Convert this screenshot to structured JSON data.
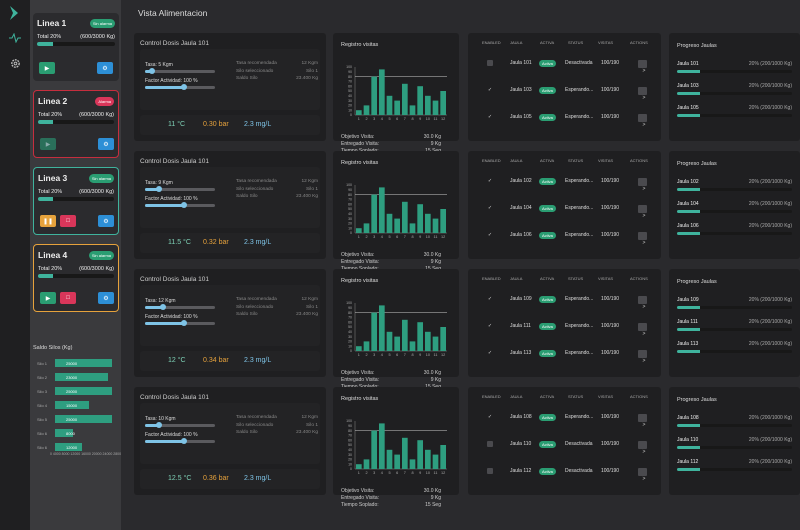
{
  "app": {
    "title": "Vista Alimentacion"
  },
  "lines": [
    {
      "name": "Linea 1",
      "badge": "Sin alarma",
      "total_label": "Total 20%",
      "total_value": "(600/3000 Kg)",
      "progress": 0.2
    },
    {
      "name": "Linea 2",
      "badge": "Alarma",
      "total_label": "Total 20%",
      "total_value": "(600/3000 Kg)",
      "progress": 0.2
    },
    {
      "name": "Linea 3",
      "badge": "Sin alarma",
      "total_label": "Total 20%",
      "total_value": "(600/3000 Kg)",
      "progress": 0.2
    },
    {
      "name": "Linea 4",
      "badge": "Sin alarma",
      "total_label": "Total 20%",
      "total_value": "(600/3000 Kg)",
      "progress": 0.2
    }
  ],
  "silos": {
    "title": "Saldo Silos (Kg)",
    "items": [
      {
        "label": "Silo 1",
        "value": "25000"
      },
      {
        "label": "Silo 2",
        "value": "23000"
      },
      {
        "label": "Silo 3",
        "value": "25000"
      },
      {
        "label": "Silo 4",
        "value": "15000"
      },
      {
        "label": "Silo 5",
        "value": "25000"
      },
      {
        "label": "Silo 6",
        "value": "8000"
      },
      {
        "label": "Silo 6",
        "value": "12000"
      }
    ],
    "ticks": "0 4000 8000 12000 16000 20000 24000 28000"
  },
  "controls": [
    {
      "title": "Control Dosis Jaula 101",
      "tasa": "Tasa: 5 Kgm",
      "tasa_level": 0.1,
      "factor": "Factor Actividad: 100 %",
      "factor_level": 0.55,
      "tasa_rec": "12 Kgm",
      "silo": "Silo 1",
      "saldo": "23.400 Kg",
      "temp": "11 °C",
      "pres": "0.30 bar",
      "oxy": "2.3 mg/L"
    },
    {
      "title": "Control Dosis Jaula 101",
      "tasa": "Tasa: 9 Kgm",
      "tasa_level": 0.2,
      "factor": "Factor Actividad: 100 %",
      "factor_level": 0.55,
      "tasa_rec": "12 Kgm",
      "silo": "Silo 1",
      "saldo": "23.400 Kg",
      "temp": "11.5 °C",
      "pres": "0.32 bar",
      "oxy": "2.3 mg/L"
    },
    {
      "title": "Control Dosis Jaula 101",
      "tasa": "Tasa: 12 Kgm",
      "tasa_level": 0.25,
      "factor": "Factor Actividad: 100 %",
      "factor_level": 0.55,
      "tasa_rec": "12 Kgm",
      "silo": "Silo 1",
      "saldo": "23.400 Kg",
      "temp": "12 °C",
      "pres": "0.34 bar",
      "oxy": "2.3 mg/L"
    },
    {
      "title": "Control Dosis Jaula 101",
      "tasa": "Tasa: 10 Kgm",
      "tasa_level": 0.2,
      "factor": "Factor Actividad: 100 %",
      "factor_level": 0.55,
      "tasa_rec": "12 Kgm",
      "silo": "Silo 1",
      "saldo": "23.400 Kg",
      "temp": "12.5 °C",
      "pres": "0.36 bar",
      "oxy": "2.3 mg/L"
    }
  ],
  "control_labels": {
    "tasa_rec": "Tasa recomendada",
    "silo": "Silo seleccionado",
    "saldo": "Saldo Silo"
  },
  "chart_labels": {
    "title": "Registro visitas",
    "obj": "Objetivo Visita:",
    "ent": "Entregado Visita:",
    "tie": "Tiempo Soplado:"
  },
  "chart_info": {
    "obj": "30.0 Kg",
    "ent": "9 Kg",
    "tie": "15 Seg"
  },
  "table_headers": [
    "ENABLED",
    "JAULA",
    "ACTIVA",
    "STATUS",
    "VISITAS",
    "ACTIONS"
  ],
  "tables": [
    [
      {
        "en": false,
        "jaula": "Jaula 101",
        "status": "Desactivada",
        "visitas": "100/190"
      },
      {
        "en": true,
        "jaula": "Jaula 103",
        "status": "Esperando...",
        "visitas": "100/190"
      },
      {
        "en": true,
        "jaula": "Jaula 105",
        "status": "Esperando...",
        "visitas": "100/190"
      }
    ],
    [
      {
        "en": true,
        "jaula": "Jaula 102",
        "status": "Esperando...",
        "visitas": "100/190"
      },
      {
        "en": true,
        "jaula": "Jaula 104",
        "status": "Esperando...",
        "visitas": "100/190"
      },
      {
        "en": true,
        "jaula": "Jaula 106",
        "status": "Esperando...",
        "visitas": "100/190"
      }
    ],
    [
      {
        "en": true,
        "jaula": "Jaula 109",
        "status": "Esperando...",
        "visitas": "100/190"
      },
      {
        "en": true,
        "jaula": "Jaula 111",
        "status": "Esperando...",
        "visitas": "100/190"
      },
      {
        "en": true,
        "jaula": "Jaula 113",
        "status": "Esperando...",
        "visitas": "100/190"
      }
    ],
    [
      {
        "en": true,
        "jaula": "Jaula 108",
        "status": "Esperando...",
        "visitas": "100/190"
      },
      {
        "en": false,
        "jaula": "Jaula 110",
        "status": "Desactivada",
        "visitas": "100/190"
      },
      {
        "en": false,
        "jaula": "Jaula 112",
        "status": "Desactivada",
        "visitas": "100/190"
      }
    ]
  ],
  "activa_label": "Activa",
  "progress_panels": [
    {
      "title": "Progreso Jaulas",
      "items": [
        {
          "name": "Jaula 101",
          "value": "20% (200/1000 Kg)",
          "progress": 0.2
        },
        {
          "name": "Jaula 103",
          "value": "20% (200/1000 Kg)",
          "progress": 0.2
        },
        {
          "name": "Jaula 105",
          "value": "20% (200/1000 Kg)",
          "progress": 0.2
        }
      ]
    },
    {
      "title": "Progreso Jaulas",
      "items": [
        {
          "name": "Jaula 102",
          "value": "20% (200/1000 Kg)",
          "progress": 0.2
        },
        {
          "name": "Jaula 104",
          "value": "20% (200/1000 Kg)",
          "progress": 0.2
        },
        {
          "name": "Jaula 106",
          "value": "20% (200/1000 Kg)",
          "progress": 0.2
        }
      ]
    },
    {
      "title": "Progreso Jaulas",
      "items": [
        {
          "name": "Jaula 109",
          "value": "20% (200/1000 Kg)",
          "progress": 0.2
        },
        {
          "name": "Jaula 111",
          "value": "20% (200/1000 Kg)",
          "progress": 0.2
        },
        {
          "name": "Jaula 113",
          "value": "20% (200/1000 Kg)",
          "progress": 0.2
        }
      ]
    },
    {
      "title": "Progreso Jaulas",
      "items": [
        {
          "name": "Jaula 108",
          "value": "20% (200/1000 Kg)",
          "progress": 0.2
        },
        {
          "name": "Jaula 110",
          "value": "20% (200/1000 Kg)",
          "progress": 0.2
        },
        {
          "name": "Jaula 112",
          "value": "20% (200/1000 Kg)",
          "progress": 0.2
        }
      ]
    }
  ],
  "chart_data": {
    "type": "bar",
    "categories": [
      "1",
      "2",
      "3",
      "4",
      "5",
      "6",
      "7",
      "8",
      "9",
      "10",
      "11",
      "12"
    ],
    "values": [
      10,
      20,
      80,
      95,
      40,
      30,
      65,
      20,
      60,
      40,
      30,
      50
    ],
    "target": 80,
    "ylim": [
      0,
      100
    ],
    "yticks": [
      0,
      10,
      20,
      30,
      40,
      50,
      60,
      70,
      80,
      90,
      100
    ]
  },
  "colors": {
    "teal": "#3fb39d",
    "red": "#d9365a",
    "blue": "#2d8fd6",
    "orange": "#e6a23c"
  }
}
